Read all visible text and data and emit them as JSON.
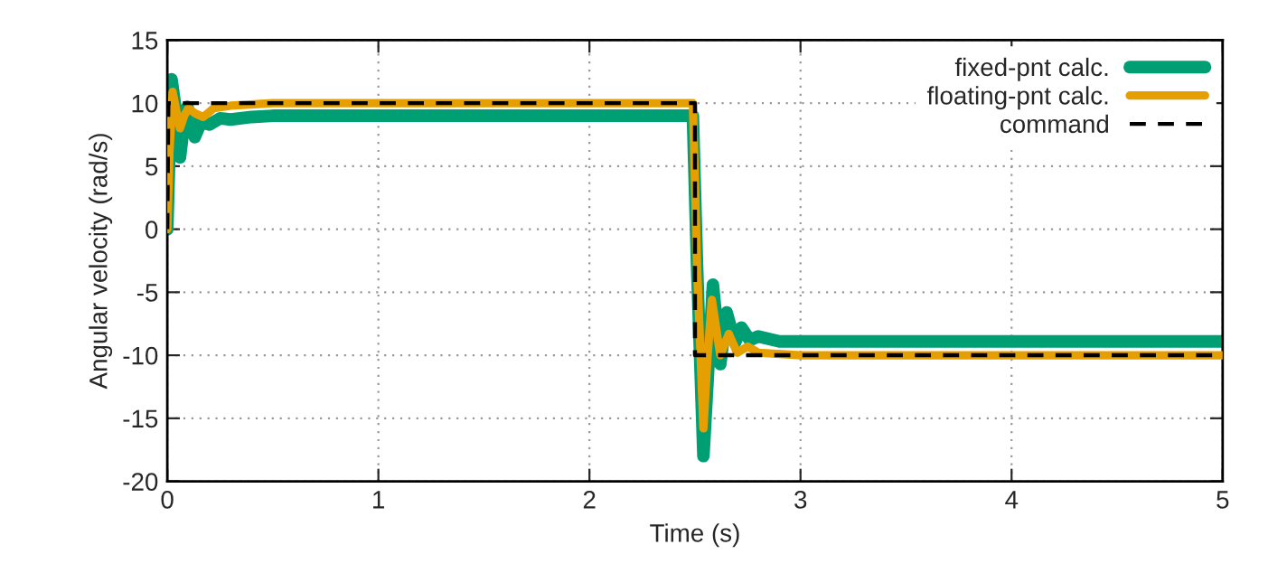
{
  "chart_data": {
    "type": "line",
    "xlabel": "Time (s)",
    "ylabel": "Angular velocity (rad/s)",
    "xlim": [
      0,
      5
    ],
    "ylim": [
      -20,
      15
    ],
    "xticks": [
      0,
      1,
      2,
      3,
      4,
      5
    ],
    "yticks": [
      -20,
      -15,
      -10,
      -5,
      0,
      5,
      10,
      15
    ],
    "grid": true,
    "legend": "top right",
    "series": [
      {
        "name": "fixed-pnt calc.",
        "color": "#009e73",
        "line_style": "solid",
        "x": [
          0,
          0.01,
          0.02,
          0.04,
          0.06,
          0.08,
          0.095,
          0.115,
          0.13,
          0.16,
          0.2,
          0.25,
          0.3,
          0.4,
          0.5,
          1.0,
          1.5,
          2.0,
          2.49,
          2.51,
          2.54,
          2.56,
          2.585,
          2.6,
          2.62,
          2.65,
          2.69,
          2.72,
          2.76,
          2.8,
          2.9,
          3.0,
          4.0,
          5.0
        ],
        "values": [
          0,
          6,
          11.9,
          9.5,
          5.7,
          8.5,
          9.7,
          8.6,
          7.3,
          8.5,
          8.3,
          8.8,
          8.7,
          8.9,
          9.0,
          9.0,
          9.0,
          9.0,
          9.0,
          -3,
          -18.0,
          -12,
          -4.4,
          -7,
          -10.7,
          -6.6,
          -9.0,
          -7.8,
          -8.8,
          -8.5,
          -8.9,
          -8.9,
          -8.9,
          -8.9
        ]
      },
      {
        "name": "floating-pnt calc.",
        "color": "#e69f00",
        "line_style": "solid",
        "x": [
          0,
          0.01,
          0.025,
          0.045,
          0.06,
          0.08,
          0.1,
          0.13,
          0.17,
          0.22,
          0.3,
          0.5,
          1.0,
          2.0,
          2.49,
          2.51,
          2.54,
          2.56,
          2.58,
          2.62,
          2.66,
          2.7,
          2.75,
          2.8,
          3.0,
          4.0,
          5.0
        ],
        "values": [
          0,
          6,
          10.9,
          9.2,
          8.0,
          9.0,
          9.6,
          9.2,
          8.9,
          9.6,
          9.8,
          10.0,
          10.0,
          10.0,
          10.0,
          -3,
          -15.8,
          -10,
          -5.6,
          -10.0,
          -8.3,
          -9.8,
          -9.3,
          -9.8,
          -10.0,
          -10.0,
          -10.0
        ]
      },
      {
        "name": "command",
        "color": "#000000",
        "line_style": "dashed",
        "x": [
          0,
          0.005,
          2.5,
          2.5,
          5.0
        ],
        "values": [
          0,
          10,
          10,
          -10,
          -10
        ]
      }
    ]
  }
}
